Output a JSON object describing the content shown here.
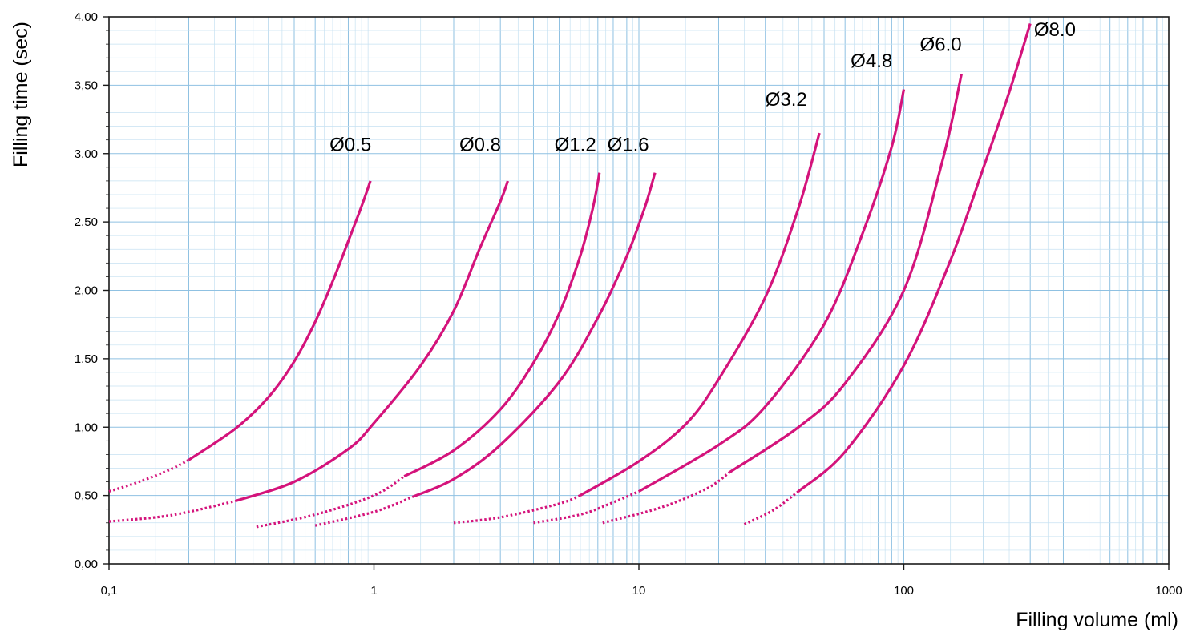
{
  "chart_data": {
    "type": "line",
    "title": "",
    "xlabel": "Filling volume (ml)",
    "ylabel": "Filling time (sec)",
    "x_scale": "log",
    "xlim": [
      0.1,
      1000
    ],
    "ylim": [
      0,
      4
    ],
    "grid": true,
    "legend": "none",
    "x_ticks": [
      {
        "value": 0.1,
        "label": "0,1"
      },
      {
        "value": 1,
        "label": "1"
      },
      {
        "value": 10,
        "label": "10"
      },
      {
        "value": 100,
        "label": "100"
      },
      {
        "value": 1000,
        "label": "1000"
      }
    ],
    "y_ticks": [
      {
        "value": 0,
        "label": "0,00"
      },
      {
        "value": 0.5,
        "label": "0,50"
      },
      {
        "value": 1,
        "label": "1,00"
      },
      {
        "value": 1.5,
        "label": "1,50"
      },
      {
        "value": 2,
        "label": "2,00"
      },
      {
        "value": 2.5,
        "label": "2,50"
      },
      {
        "value": 3,
        "label": "3,00"
      },
      {
        "value": 3.5,
        "label": "3,50"
      },
      {
        "value": 4,
        "label": "4,00"
      }
    ],
    "line_color": "#d4137b",
    "series": [
      {
        "label": "Ø0.5",
        "dotted": [
          [
            0.1,
            0.53
          ],
          [
            0.13,
            0.6
          ],
          [
            0.17,
            0.69
          ],
          [
            0.2,
            0.76
          ]
        ],
        "solid": [
          [
            0.2,
            0.76
          ],
          [
            0.3,
            0.99
          ],
          [
            0.4,
            1.22
          ],
          [
            0.5,
            1.48
          ],
          [
            0.6,
            1.77
          ],
          [
            0.7,
            2.07
          ],
          [
            0.8,
            2.36
          ],
          [
            0.9,
            2.62
          ],
          [
            0.97,
            2.8
          ]
        ]
      },
      {
        "label": "Ø0.8",
        "dotted": [
          [
            0.1,
            0.31
          ],
          [
            0.15,
            0.34
          ],
          [
            0.2,
            0.38
          ],
          [
            0.3,
            0.46
          ]
        ],
        "solid": [
          [
            0.3,
            0.46
          ],
          [
            0.5,
            0.6
          ],
          [
            0.8,
            0.84
          ],
          [
            1,
            1.03
          ],
          [
            1.5,
            1.45
          ],
          [
            2,
            1.85
          ],
          [
            2.5,
            2.3
          ],
          [
            3,
            2.65
          ],
          [
            3.2,
            2.8
          ]
        ]
      },
      {
        "label": "Ø1.2",
        "dotted": [
          [
            0.36,
            0.27
          ],
          [
            0.6,
            0.36
          ],
          [
            1,
            0.5
          ],
          [
            1.3,
            0.64
          ]
        ],
        "solid": [
          [
            1.3,
            0.64
          ],
          [
            2,
            0.83
          ],
          [
            3,
            1.13
          ],
          [
            4,
            1.47
          ],
          [
            5,
            1.83
          ],
          [
            6,
            2.25
          ],
          [
            6.7,
            2.6
          ],
          [
            7.1,
            2.86
          ]
        ]
      },
      {
        "label": "Ø1.6",
        "dotted": [
          [
            0.6,
            0.28
          ],
          [
            1,
            0.38
          ],
          [
            1.4,
            0.49
          ]
        ],
        "solid": [
          [
            1.4,
            0.49
          ],
          [
            2,
            0.62
          ],
          [
            3,
            0.87
          ],
          [
            5,
            1.33
          ],
          [
            7,
            1.8
          ],
          [
            9,
            2.25
          ],
          [
            10.5,
            2.6
          ],
          [
            11.5,
            2.86
          ]
        ]
      },
      {
        "label": "Ø3.2",
        "dotted": [
          [
            2,
            0.3
          ],
          [
            3,
            0.34
          ],
          [
            5,
            0.44
          ],
          [
            6,
            0.5
          ]
        ],
        "solid": [
          [
            6,
            0.5
          ],
          [
            10,
            0.75
          ],
          [
            15,
            1.02
          ],
          [
            20,
            1.35
          ],
          [
            30,
            1.95
          ],
          [
            40,
            2.6
          ],
          [
            48,
            3.15
          ]
        ]
      },
      {
        "label": "Ø4.8",
        "dotted": [
          [
            4,
            0.3
          ],
          [
            6,
            0.36
          ],
          [
            8,
            0.45
          ],
          [
            10,
            0.53
          ]
        ],
        "solid": [
          [
            10,
            0.53
          ],
          [
            20,
            0.87
          ],
          [
            30,
            1.15
          ],
          [
            50,
            1.75
          ],
          [
            70,
            2.42
          ],
          [
            90,
            3.05
          ],
          [
            100,
            3.47
          ]
        ]
      },
      {
        "label": "Ø6.0",
        "dotted": [
          [
            7.3,
            0.3
          ],
          [
            12,
            0.41
          ],
          [
            18,
            0.55
          ],
          [
            22,
            0.67
          ]
        ],
        "solid": [
          [
            22,
            0.67
          ],
          [
            40,
            1.0
          ],
          [
            60,
            1.32
          ],
          [
            100,
            2.0
          ],
          [
            140,
            2.95
          ],
          [
            165,
            3.58
          ]
        ]
      },
      {
        "label": "Ø8.0",
        "dotted": [
          [
            25,
            0.29
          ],
          [
            32,
            0.39
          ],
          [
            40,
            0.53
          ]
        ],
        "solid": [
          [
            40,
            0.53
          ],
          [
            60,
            0.82
          ],
          [
            100,
            1.45
          ],
          [
            150,
            2.22
          ],
          [
            200,
            2.9
          ],
          [
            250,
            3.45
          ],
          [
            300,
            3.95
          ]
        ]
      }
    ],
    "series_labels": [
      {
        "label": "Ø0.5",
        "x": 0.68,
        "y": 3.02
      },
      {
        "label": "Ø0.8",
        "x": 2.1,
        "y": 3.02
      },
      {
        "label": "Ø1.2",
        "x": 4.8,
        "y": 3.02
      },
      {
        "label": "Ø1.6",
        "x": 7.6,
        "y": 3.02
      },
      {
        "label": "Ø3.2",
        "x": 30,
        "y": 3.35
      },
      {
        "label": "Ø4.8",
        "x": 63,
        "y": 3.63
      },
      {
        "label": "Ø6.0",
        "x": 115,
        "y": 3.75
      },
      {
        "label": "Ø8.0",
        "x": 310,
        "y": 3.86
      }
    ]
  }
}
